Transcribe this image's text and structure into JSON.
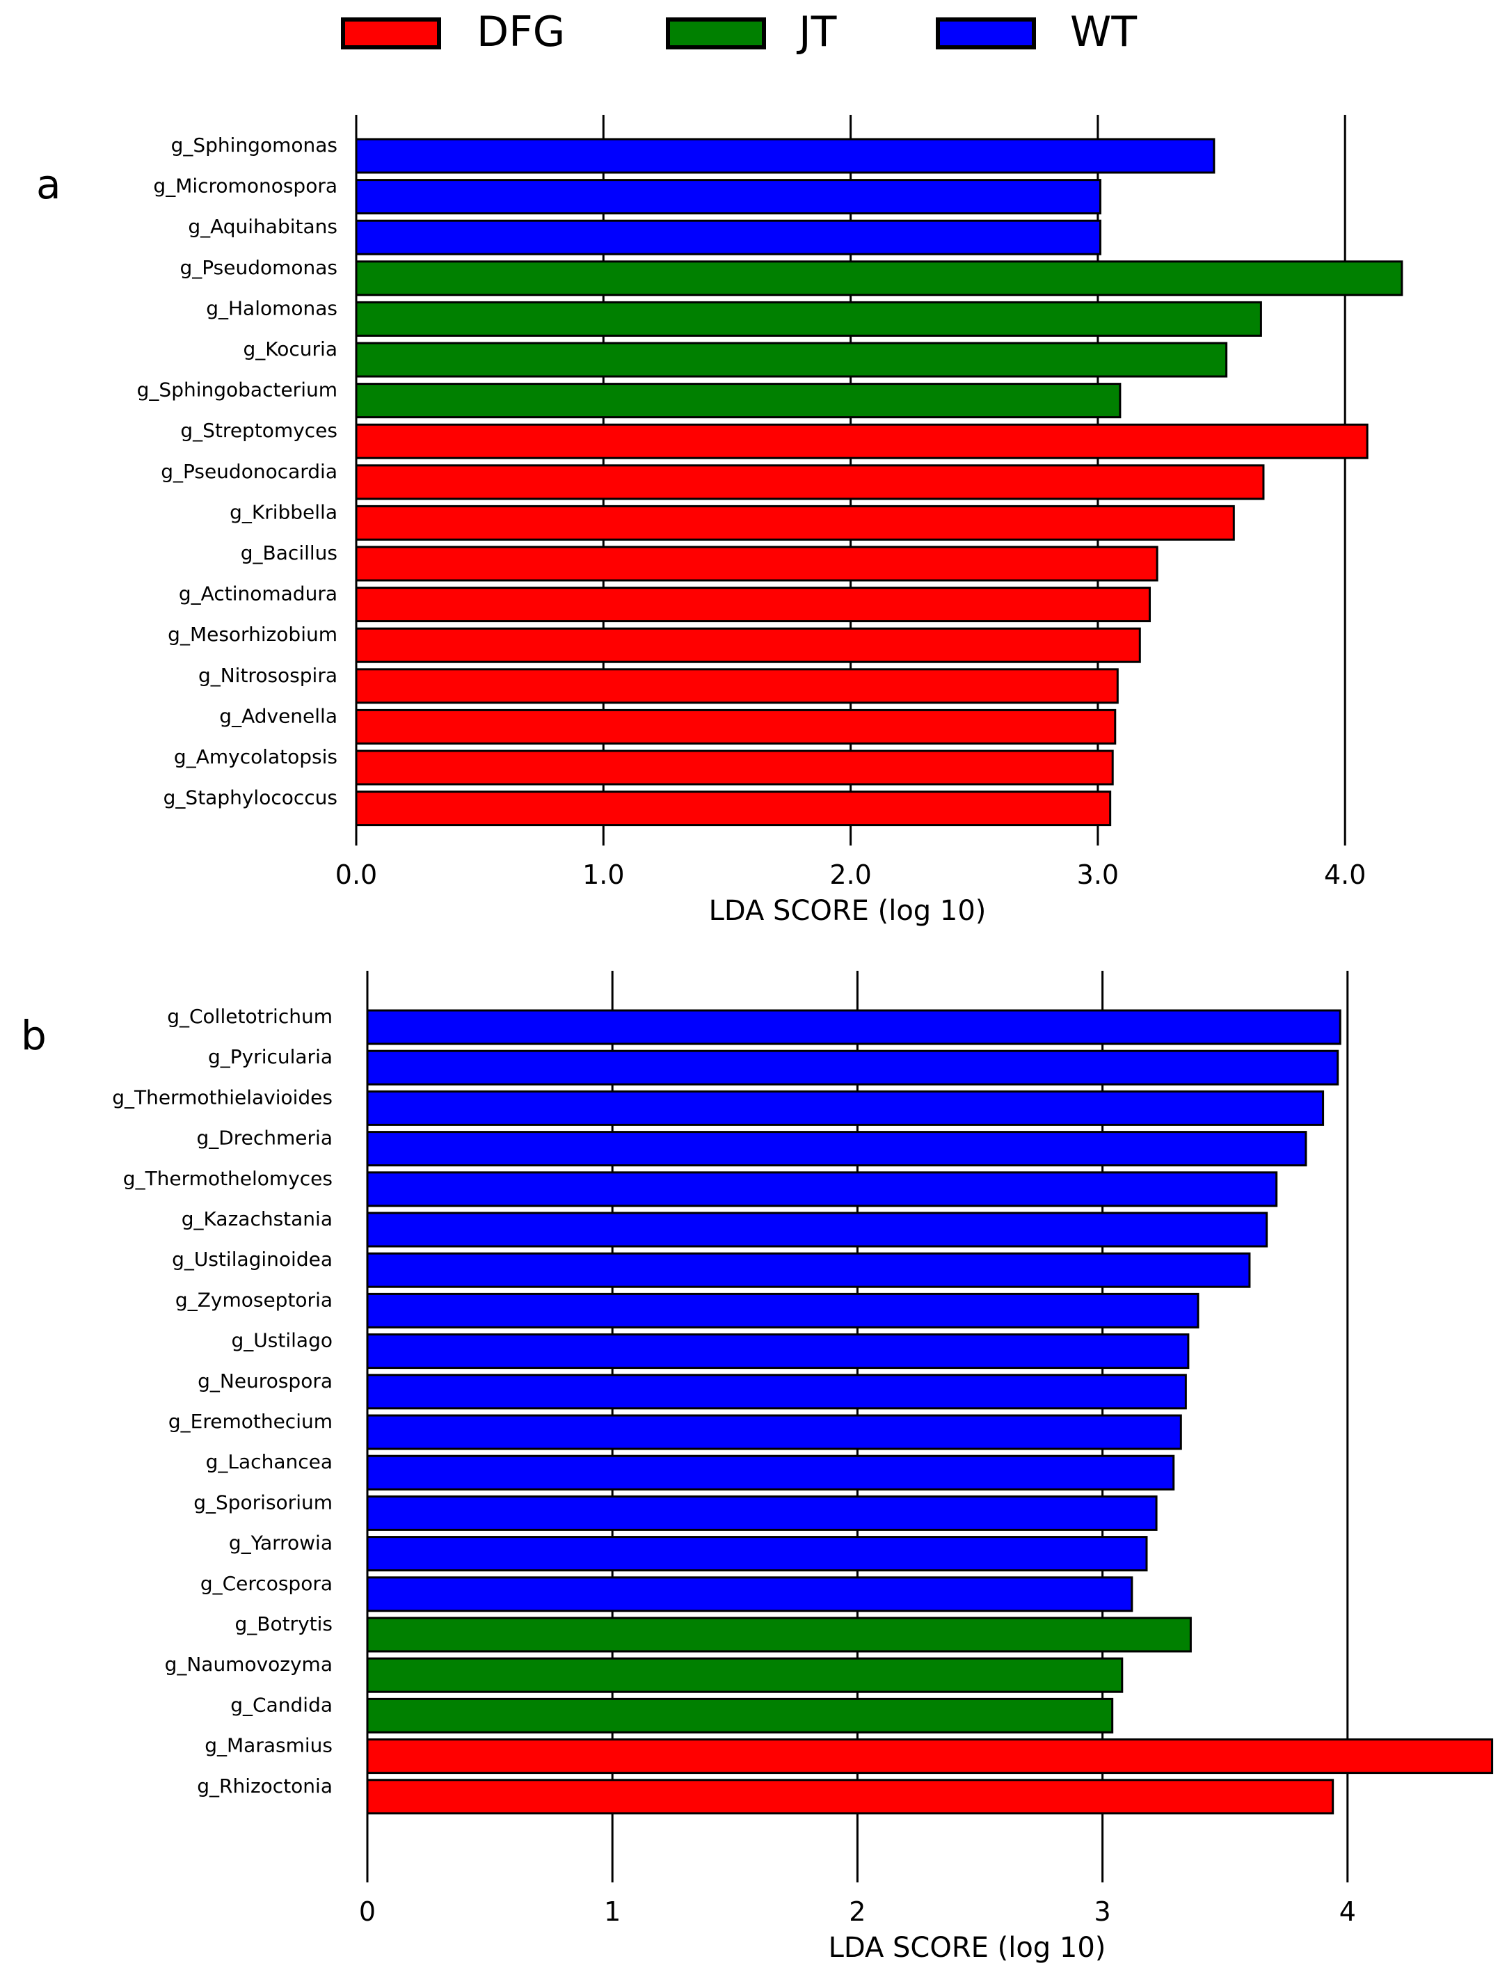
{
  "legend": [
    {
      "label": "DFG",
      "color": "#ff0000"
    },
    {
      "label": "JT",
      "color": "#008000"
    },
    {
      "label": "WT",
      "color": "#0000ff"
    }
  ],
  "chart_data": [
    {
      "type": "bar",
      "orientation": "horizontal",
      "panel_label": "a",
      "xlabel": "LDA SCORE (log 10)",
      "xlim": [
        0,
        4.3
      ],
      "xticks": [
        0,
        1,
        2,
        3,
        4
      ],
      "xtick_labels": [
        "0.0",
        "1.0",
        "2.0",
        "3.0",
        "4.0"
      ],
      "grid": "vertical lines at each tick",
      "categories": [
        "g_Sphingomonas",
        "g_Micromonospora",
        "g_Aquihabitans",
        "g_Pseudomonas",
        "g_Halomonas",
        "g_Kocuria",
        "g_Sphingobacterium",
        "g_Streptomyces",
        "g_Pseudonocardia",
        "g_Kribbella",
        "g_Bacillus",
        "g_Actinomadura",
        "g_Mesorhizobium",
        "g_Nitrosospira",
        "g_Advenella",
        "g_Amycolatopsis",
        "g_Staphylococcus"
      ],
      "values": [
        3.47,
        3.01,
        3.01,
        4.23,
        3.66,
        3.52,
        3.09,
        4.09,
        3.67,
        3.55,
        3.24,
        3.21,
        3.17,
        3.08,
        3.07,
        3.06,
        3.05
      ],
      "groups": [
        "WT",
        "WT",
        "WT",
        "JT",
        "JT",
        "JT",
        "JT",
        "DFG",
        "DFG",
        "DFG",
        "DFG",
        "DFG",
        "DFG",
        "DFG",
        "DFG",
        "DFG",
        "DFG"
      ]
    },
    {
      "type": "bar",
      "orientation": "horizontal",
      "panel_label": "b",
      "xlabel": "LDA SCORE (log 10)",
      "xlim": [
        0,
        4.6
      ],
      "xticks": [
        0,
        1,
        2,
        3,
        4
      ],
      "xtick_labels": [
        "0",
        "1",
        "2",
        "3",
        "4"
      ],
      "grid": "vertical lines at each tick",
      "categories": [
        "g_Colletotrichum",
        "g_Pyricularia",
        "g_Thermothielavioides",
        "g_Drechmeria",
        "g_Thermothelomyces",
        "g_Kazachstania",
        "g_Ustilaginoidea",
        "g_Zymoseptoria",
        "g_Ustilago",
        "g_Neurospora",
        "g_Eremothecium",
        "g_Lachancea",
        "g_Sporisorium",
        "g_Yarrowia",
        "g_Cercospora",
        "g_Botrytis",
        "g_Naumovozyma",
        "g_Candida",
        "g_Marasmius",
        "g_Rhizoctonia"
      ],
      "values": [
        3.97,
        3.96,
        3.9,
        3.83,
        3.71,
        3.67,
        3.6,
        3.39,
        3.35,
        3.34,
        3.32,
        3.29,
        3.22,
        3.18,
        3.12,
        3.36,
        3.08,
        3.04,
        4.59,
        3.94
      ],
      "groups": [
        "WT",
        "WT",
        "WT",
        "WT",
        "WT",
        "WT",
        "WT",
        "WT",
        "WT",
        "WT",
        "WT",
        "WT",
        "WT",
        "WT",
        "WT",
        "JT",
        "JT",
        "JT",
        "DFG",
        "DFG"
      ]
    }
  ]
}
